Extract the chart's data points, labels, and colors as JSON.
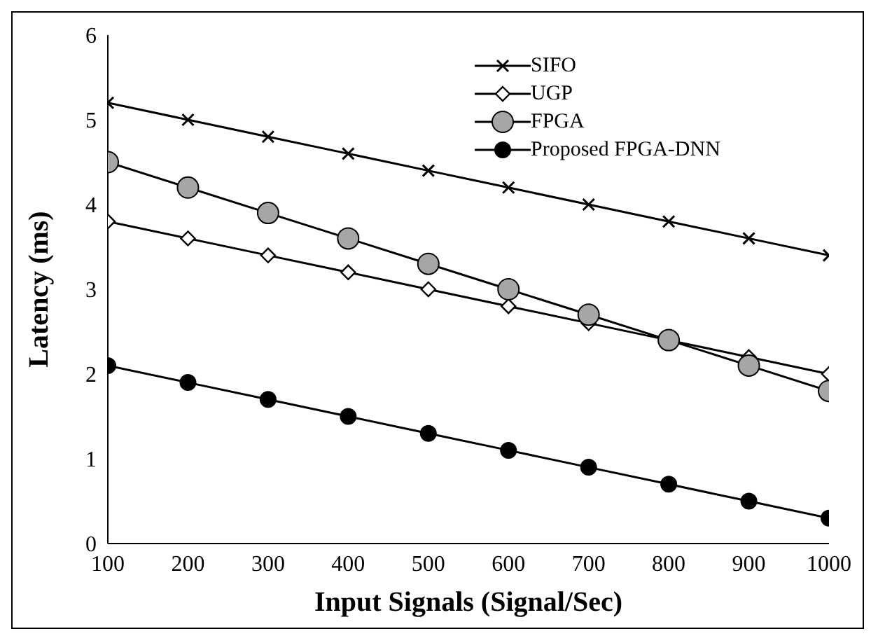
{
  "chart_data": {
    "type": "line",
    "xlabel": "Input Signals (Signal/Sec)",
    "ylabel": "Latency (ms)",
    "x": [
      100,
      200,
      300,
      400,
      500,
      600,
      700,
      800,
      900,
      1000
    ],
    "xlim": [
      100,
      1000
    ],
    "xticks": [
      100,
      200,
      300,
      400,
      500,
      600,
      700,
      800,
      900,
      1000
    ],
    "ylim": [
      0,
      6
    ],
    "yticks": [
      0,
      1,
      2,
      3,
      4,
      5,
      6
    ],
    "grid": false,
    "legend": "top right",
    "series": [
      {
        "name": "SIFO",
        "color": "#000000",
        "marker": "cross",
        "values": [
          5.2,
          5.0,
          4.8,
          4.6,
          4.4,
          4.2,
          4.0,
          3.8,
          3.6,
          3.4
        ]
      },
      {
        "name": "UGP",
        "color": "#000000",
        "marker": "diamond",
        "values": [
          3.8,
          3.6,
          3.4,
          3.2,
          3.0,
          2.8,
          2.6,
          2.4,
          2.2,
          2.0
        ]
      },
      {
        "name": "FPGA",
        "color": "#a6a6a6",
        "marker": "circle",
        "values": [
          4.5,
          4.2,
          3.9,
          3.6,
          3.3,
          3.0,
          2.7,
          2.4,
          2.1,
          1.8
        ]
      },
      {
        "name": "Proposed FPGA-DNN",
        "color": "#000000",
        "marker": "circle",
        "values": [
          2.1,
          1.9,
          1.7,
          1.5,
          1.3,
          1.1,
          0.9,
          0.7,
          0.5,
          0.3
        ]
      }
    ]
  }
}
